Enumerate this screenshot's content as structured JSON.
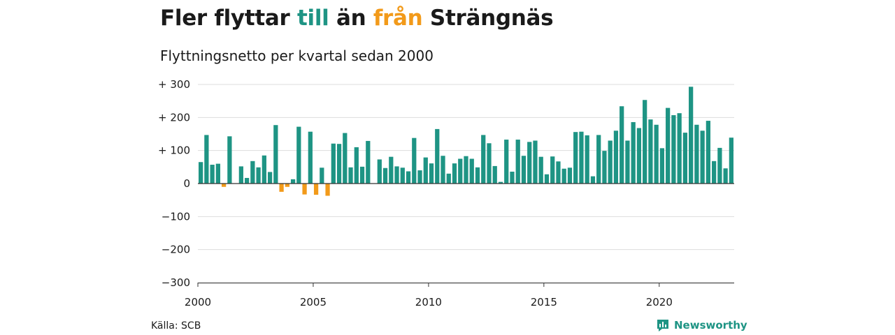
{
  "title": {
    "prefix": "Fler flyttar ",
    "in_word": "till",
    "middle": " än ",
    "out_word": "från",
    "suffix": " Strängnäs"
  },
  "subtitle": "Flyttningsnetto per kvartal sedan 2000",
  "source": "Källa: SCB",
  "brand": {
    "name": "Newsworthy",
    "icon": "newsworthy-logo-icon"
  },
  "colors": {
    "positive": "#1e9484",
    "negative": "#f29a1a",
    "grid": "#dddddd",
    "axis": "#333333"
  },
  "chart_data": {
    "type": "bar",
    "title": "Fler flyttar till än från Strängnäs",
    "subtitle": "Flyttningsnetto per kvartal sedan 2000",
    "y_ticks": [
      300,
      200,
      100,
      0,
      -100,
      -200,
      -300
    ],
    "y_tick_labels": [
      "+ 300",
      "+ 200",
      "+ 100",
      "0",
      "−100",
      "−200",
      "−300"
    ],
    "ylim": [
      -300,
      300
    ],
    "x_tick_labels": [
      "2000",
      "2005",
      "2010",
      "2015",
      "2020"
    ],
    "start_year": 2000,
    "frequency": "quarterly",
    "grid": true,
    "values": [
      65,
      147,
      57,
      60,
      -10,
      143,
      0,
      52,
      17,
      68,
      49,
      85,
      35,
      177,
      -25,
      -10,
      13,
      172,
      -33,
      157,
      -34,
      48,
      -37,
      121,
      120,
      153,
      49,
      110,
      51,
      129,
      0,
      73,
      47,
      81,
      52,
      48,
      37,
      138,
      40,
      79,
      61,
      165,
      84,
      30,
      61,
      75,
      83,
      75,
      49,
      147,
      122,
      53,
      5,
      133,
      36,
      133,
      84,
      126,
      130,
      81,
      28,
      82,
      67,
      45,
      48,
      156,
      157,
      146,
      22,
      147,
      99,
      130,
      160,
      234,
      130,
      186,
      168,
      253,
      194,
      178,
      107,
      229,
      207,
      213,
      154,
      293,
      178,
      160,
      190,
      68,
      108,
      46,
      139
    ]
  }
}
